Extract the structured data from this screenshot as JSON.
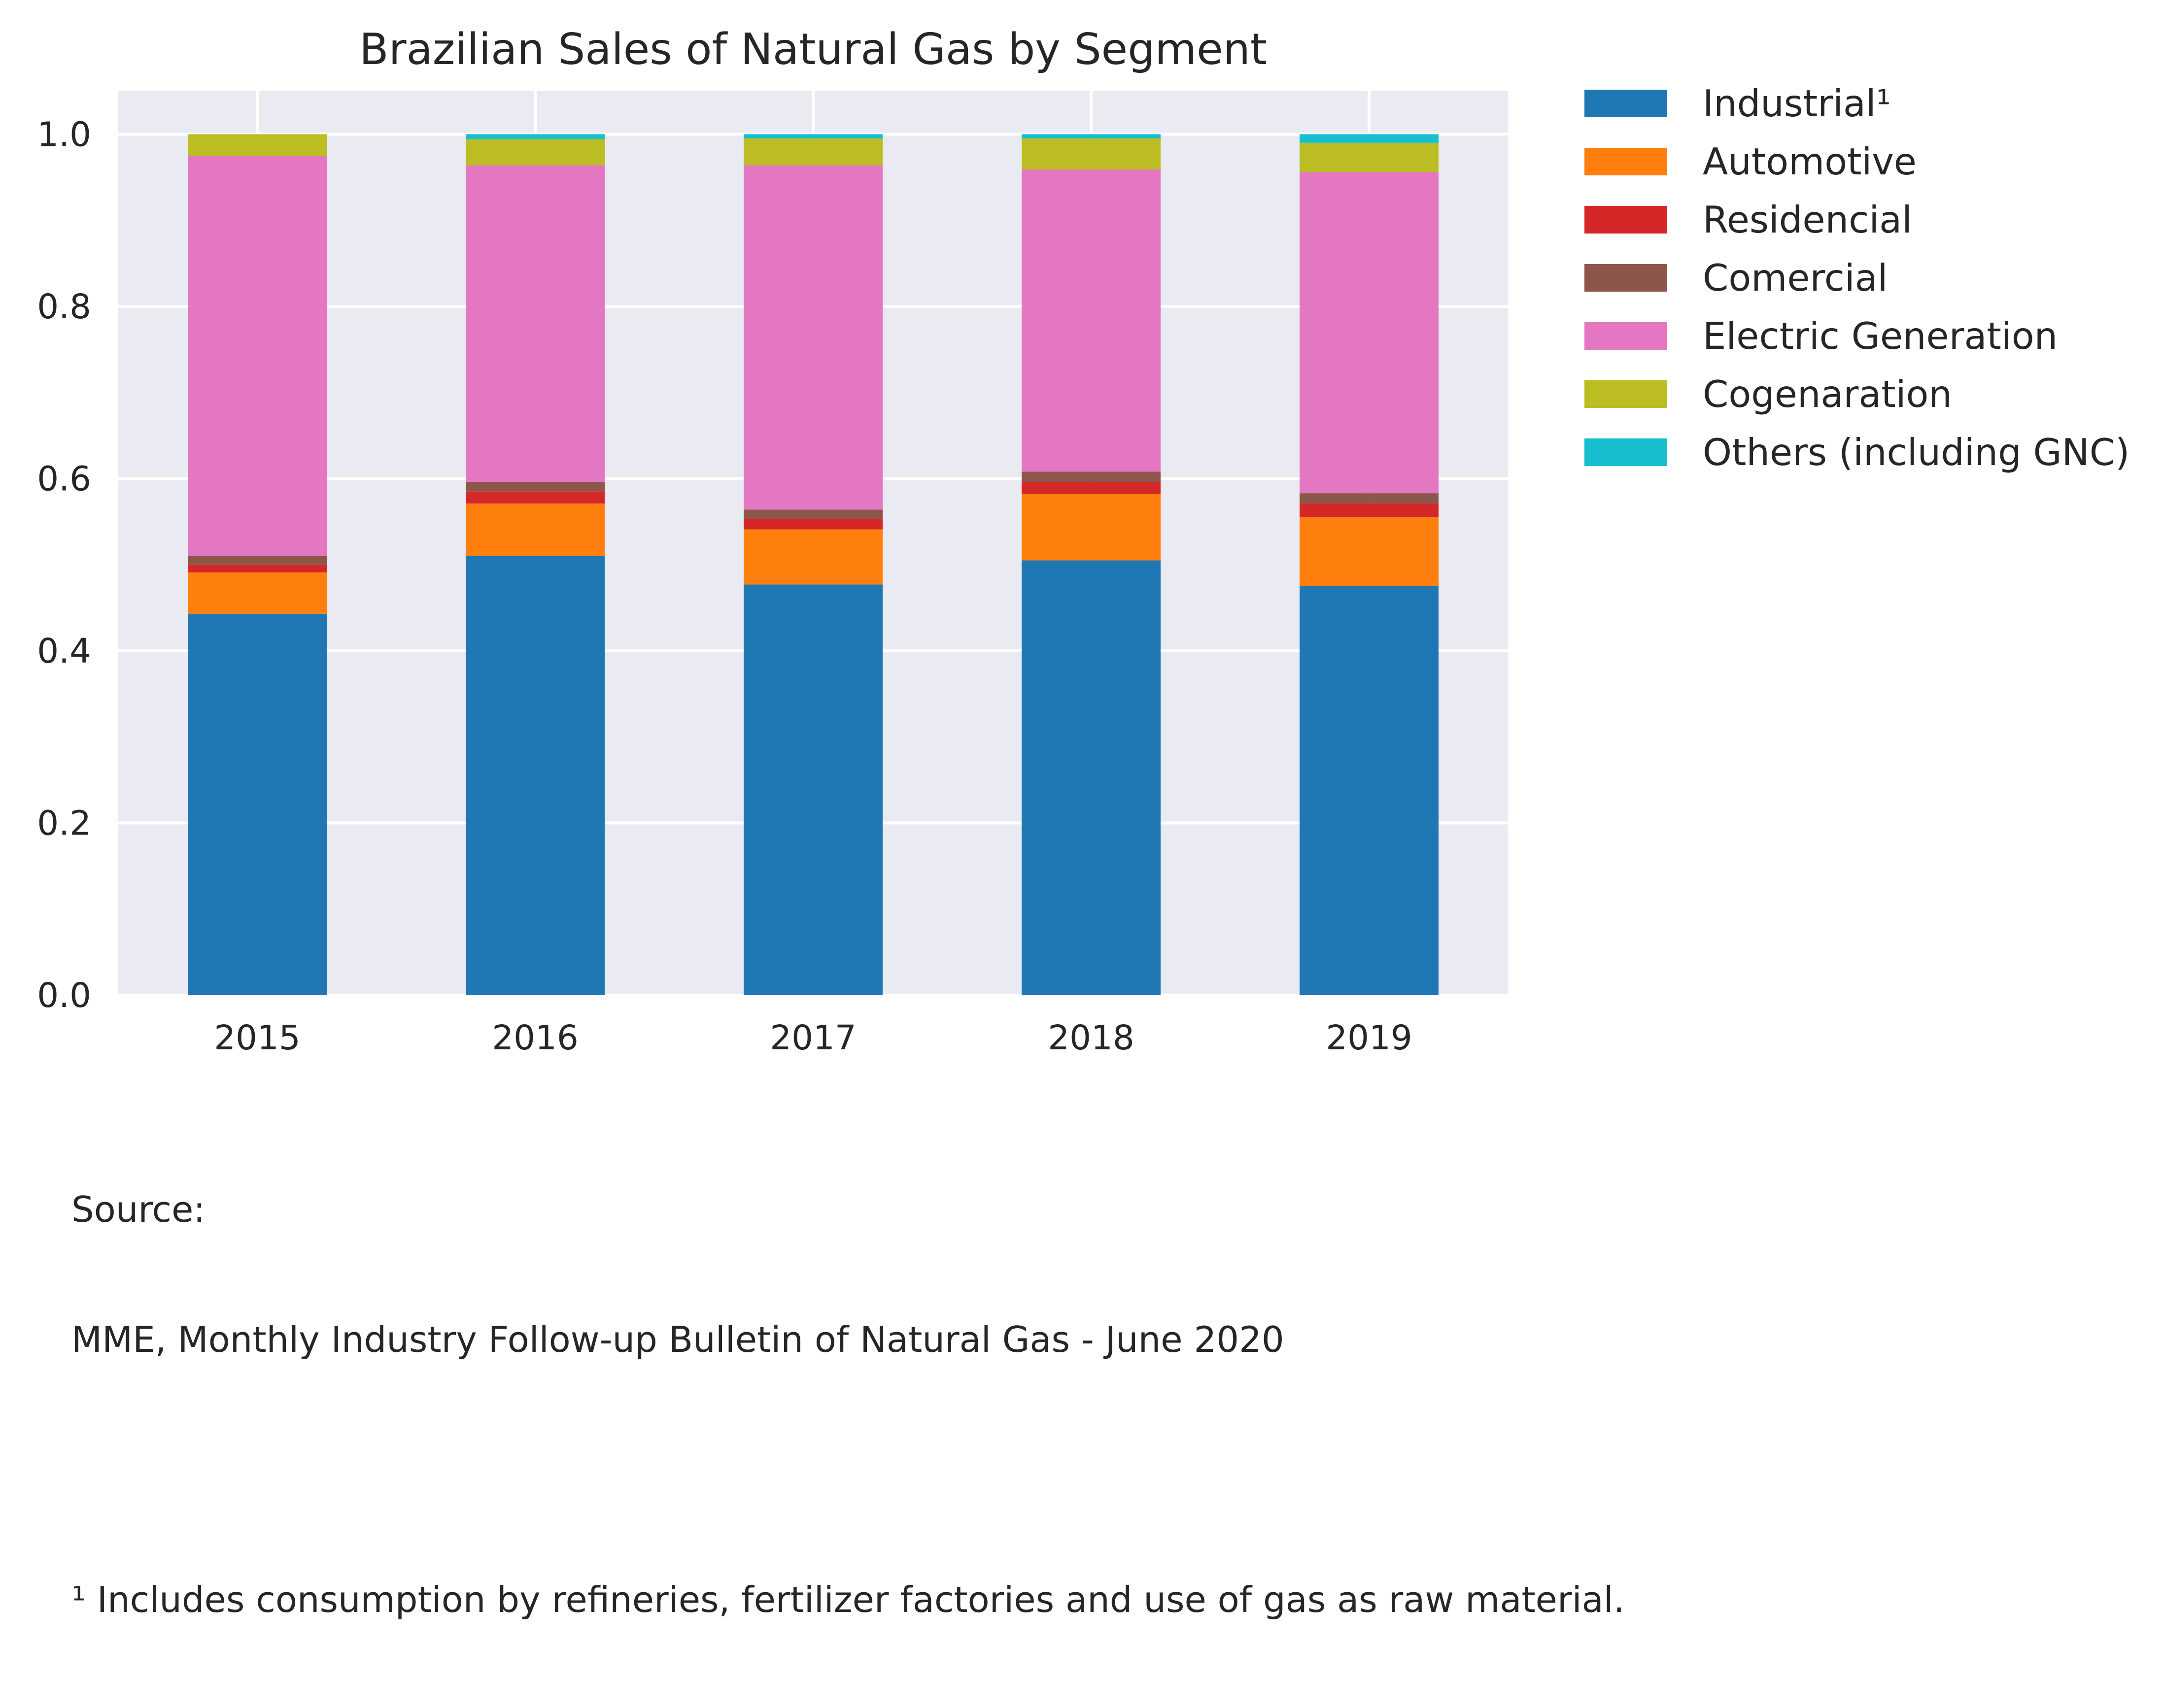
{
  "chart_data": {
    "type": "bar",
    "stacked": true,
    "title": "Brazilian Sales of Natural Gas by Segment",
    "xlabel": "",
    "ylabel": "",
    "categories": [
      "2015",
      "2016",
      "2017",
      "2018",
      "2019"
    ],
    "ylim": [
      0,
      1.05
    ],
    "yticks": [
      "0.0",
      "0.2",
      "0.4",
      "0.6",
      "0.8",
      "1.0"
    ],
    "ytick_values": [
      0,
      0.2,
      0.4,
      0.6,
      0.8,
      1.0
    ],
    "grid": true,
    "legend_position": "outside right, top",
    "series": [
      {
        "name": "Industrial¹",
        "color": "#1f77b4",
        "values": [
          0.443,
          0.51,
          0.477,
          0.505,
          0.475
        ]
      },
      {
        "name": "Automotive",
        "color": "#ff7f0e",
        "values": [
          0.048,
          0.061,
          0.064,
          0.077,
          0.08
        ]
      },
      {
        "name": "Residencial",
        "color": "#d62728",
        "values": [
          0.009,
          0.014,
          0.012,
          0.014,
          0.016
        ]
      },
      {
        "name": "Comercial",
        "color": "#8c564b",
        "values": [
          0.01,
          0.011,
          0.011,
          0.012,
          0.012
        ]
      },
      {
        "name": "Electric Generation",
        "color": "#e377c2",
        "values": [
          0.465,
          0.368,
          0.4,
          0.351,
          0.373
        ]
      },
      {
        "name": "Cogenaration",
        "color": "#bcbd22",
        "values": [
          0.025,
          0.03,
          0.031,
          0.036,
          0.034
        ]
      },
      {
        "name": "Others (including GNC)",
        "color": "#17becf",
        "values": [
          0.0,
          0.006,
          0.005,
          0.005,
          0.01
        ]
      }
    ],
    "colors": {
      "plot_background": "#eaeaf2",
      "grid": "#ffffff",
      "text": "#262626"
    }
  },
  "footnotes": {
    "source_label": "Source:",
    "source_text": "MME, Monthly Industry Follow-up Bulletin of Natural Gas - June 2020",
    "note": "¹ Includes consumption by refineries, fertilizer factories and use of gas as raw material."
  }
}
